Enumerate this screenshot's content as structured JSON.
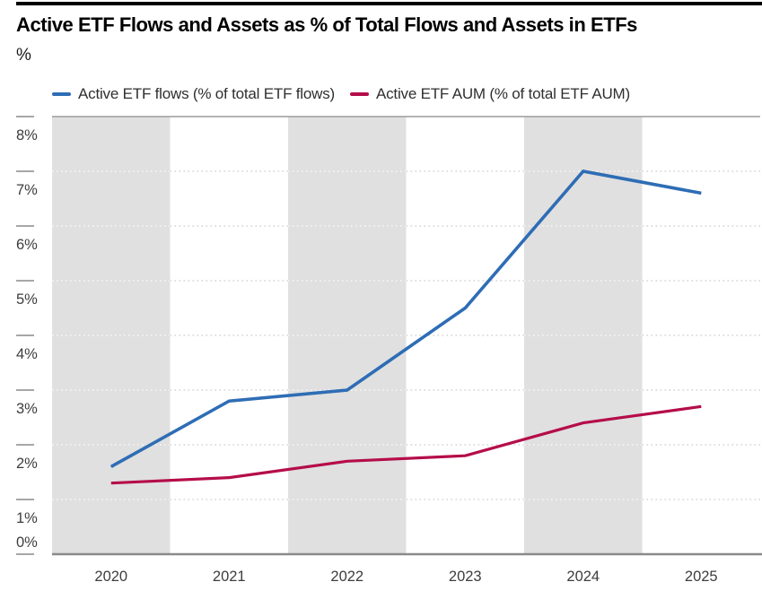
{
  "header": {
    "title": "Active ETF Flows and Assets as % of Total Flows and Assets in ETFs",
    "unit": "%"
  },
  "legend": {
    "items": [
      {
        "label": "Active ETF flows (% of total ETF flows)",
        "color": "#2e6db5"
      },
      {
        "label": "Active ETF AUM (% of total ETF AUM)",
        "color": "#b50d49"
      }
    ]
  },
  "chart_data": {
    "type": "line",
    "title": "Active ETF Flows and Assets as % of Total Flows and Assets in ETFs",
    "ylabel": "%",
    "x": [
      2020,
      2021,
      2022,
      2023,
      2024,
      2025
    ],
    "series": [
      {
        "name": "Active ETF flows (% of total ETF flows)",
        "color": "#2e6db5",
        "values": [
          1.6,
          2.8,
          3.0,
          4.5,
          7.0,
          6.6
        ]
      },
      {
        "name": "Active ETF AUM (% of total ETF AUM)",
        "color": "#b50d49",
        "values": [
          1.3,
          1.4,
          1.7,
          1.8,
          2.4,
          2.7
        ]
      }
    ],
    "ylim": [
      0,
      8
    ],
    "ytick_labels": [
      "0%",
      "1%",
      "2%",
      "3%",
      "4%",
      "5%",
      "6%",
      "7%",
      "8%"
    ],
    "xtick_labels": [
      "2020",
      "2021",
      "2022",
      "2023",
      "2024",
      "2025"
    ],
    "grid": "dotted-horizontal",
    "legend_position": "top-left",
    "background_bands": {
      "years": [
        2020,
        2022,
        2024
      ],
      "color": "#e0e0e0"
    },
    "colors": {
      "axis_text": "#3d3d3d",
      "tick": "#8a8a8a",
      "grid_dot_on_white": "#c9c9c9",
      "grid_dot_on_band": "#ffffff",
      "top_border": "#9c9c9c",
      "bottom_border": "#8a8a8a",
      "title_bar": "#000000"
    }
  }
}
